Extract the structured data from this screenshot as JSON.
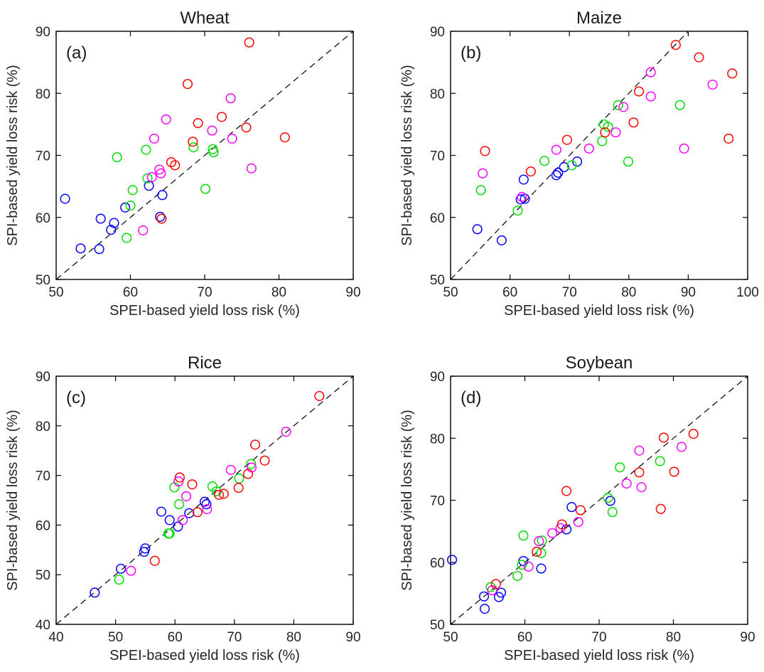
{
  "chart_data": [
    {
      "type": "scatter",
      "title": "Wheat",
      "panel_label": "(a)",
      "xlabel": "SPEI-based yield loss risk (%)",
      "ylabel": "SPI-based yield loss risk (%)",
      "xlim": [
        50,
        90
      ],
      "ylim": [
        50,
        90
      ],
      "xticks": [
        50,
        60,
        70,
        80,
        90
      ],
      "yticks": [
        50,
        60,
        70,
        80,
        90
      ],
      "reference_line": "1:1 dashed",
      "series": [
        {
          "color": "#0000ff",
          "points": [
            [
              51.2,
              63.0
            ],
            [
              53.3,
              55.0
            ],
            [
              55.8,
              54.9
            ],
            [
              56.0,
              59.8
            ],
            [
              57.4,
              58.0
            ],
            [
              57.8,
              59.1
            ],
            [
              59.3,
              61.6
            ],
            [
              62.5,
              65.1
            ],
            [
              64.0,
              60.1
            ],
            [
              64.3,
              63.6
            ]
          ]
        },
        {
          "color": "#00dd00",
          "points": [
            [
              58.2,
              69.7
            ],
            [
              59.5,
              56.7
            ],
            [
              60.0,
              61.9
            ],
            [
              60.3,
              64.4
            ],
            [
              62.1,
              70.9
            ],
            [
              62.3,
              66.3
            ],
            [
              68.5,
              71.3
            ],
            [
              70.1,
              64.6
            ],
            [
              71.1,
              71.0
            ],
            [
              71.2,
              70.5
            ]
          ]
        },
        {
          "color": "#ff00ff",
          "points": [
            [
              61.7,
              57.9
            ],
            [
              62.9,
              66.5
            ],
            [
              63.2,
              72.7
            ],
            [
              63.9,
              67.7
            ],
            [
              64.1,
              67.1
            ],
            [
              64.8,
              75.8
            ],
            [
              71.0,
              74.0
            ],
            [
              73.5,
              79.2
            ],
            [
              73.7,
              72.7
            ],
            [
              76.3,
              67.9
            ]
          ]
        },
        {
          "color": "#ff0000",
          "points": [
            [
              64.2,
              59.8
            ],
            [
              65.5,
              68.9
            ],
            [
              66.0,
              68.4
            ],
            [
              67.7,
              81.5
            ],
            [
              68.4,
              72.2
            ],
            [
              69.1,
              75.2
            ],
            [
              72.3,
              76.2
            ],
            [
              75.6,
              74.5
            ],
            [
              76.0,
              88.2
            ],
            [
              80.8,
              72.9
            ]
          ]
        }
      ]
    },
    {
      "type": "scatter",
      "title": "Maize",
      "panel_label": "(b)",
      "xlabel": "SPEI-based yield loss risk (%)",
      "ylabel": "SPI-based yield loss risk (%)",
      "xlim": [
        50,
        100
      ],
      "ylim": [
        50,
        90
      ],
      "xticks": [
        50,
        60,
        70,
        80,
        90,
        100
      ],
      "yticks": [
        50,
        60,
        70,
        80,
        90
      ],
      "reference_line": "1:1 dashed",
      "series": [
        {
          "color": "#0000ff",
          "points": [
            [
              54.5,
              58.1
            ],
            [
              58.6,
              56.3
            ],
            [
              61.8,
              62.9
            ],
            [
              62.3,
              66.1
            ],
            [
              62.5,
              63.0
            ],
            [
              67.8,
              66.8
            ],
            [
              68.1,
              67.2
            ],
            [
              69.1,
              68.1
            ],
            [
              71.3,
              69.0
            ]
          ]
        },
        {
          "color": "#00dd00",
          "points": [
            [
              55.1,
              64.4
            ],
            [
              61.3,
              61.1
            ],
            [
              65.8,
              69.1
            ],
            [
              70.4,
              68.4
            ],
            [
              75.5,
              72.3
            ],
            [
              75.8,
              75.0
            ],
            [
              76.5,
              74.6
            ],
            [
              78.2,
              78.1
            ],
            [
              79.9,
              69.0
            ],
            [
              88.6,
              78.1
            ]
          ]
        },
        {
          "color": "#ff00ff",
          "points": [
            [
              55.4,
              67.1
            ],
            [
              62.0,
              63.3
            ],
            [
              67.8,
              70.9
            ],
            [
              73.3,
              71.1
            ],
            [
              77.8,
              73.7
            ],
            [
              79.1,
              77.8
            ],
            [
              83.7,
              83.4
            ],
            [
              83.7,
              79.5
            ],
            [
              89.3,
              71.1
            ],
            [
              94.1,
              81.4
            ]
          ]
        },
        {
          "color": "#ff0000",
          "points": [
            [
              55.8,
              70.7
            ],
            [
              63.5,
              67.4
            ],
            [
              69.6,
              72.5
            ],
            [
              76.0,
              73.7
            ],
            [
              80.8,
              75.3
            ],
            [
              81.7,
              80.3
            ],
            [
              87.9,
              87.8
            ],
            [
              91.8,
              85.8
            ],
            [
              96.8,
              72.7
            ],
            [
              97.4,
              83.2
            ]
          ]
        }
      ]
    },
    {
      "type": "scatter",
      "title": "Rice",
      "panel_label": "(c)",
      "xlabel": "SPEI-based yield loss risk (%)",
      "ylabel": "SPI-based yield loss risk (%)",
      "xlim": [
        40,
        90
      ],
      "ylim": [
        40,
        90
      ],
      "xticks": [
        40,
        50,
        60,
        70,
        80,
        90
      ],
      "yticks": [
        40,
        50,
        60,
        70,
        80,
        90
      ],
      "reference_line": "1:1 dashed",
      "series": [
        {
          "color": "#0000ff",
          "points": [
            [
              46.5,
              46.4
            ],
            [
              50.9,
              51.2
            ],
            [
              54.8,
              54.6
            ],
            [
              55.0,
              55.3
            ],
            [
              57.7,
              62.7
            ],
            [
              59.1,
              61.0
            ],
            [
              60.5,
              59.7
            ],
            [
              62.4,
              62.4
            ],
            [
              65.0,
              64.7
            ],
            [
              65.3,
              64.2
            ]
          ]
        },
        {
          "color": "#00dd00",
          "points": [
            [
              50.6,
              49.0
            ],
            [
              58.9,
              58.3
            ],
            [
              59.1,
              58.3
            ],
            [
              59.9,
              67.6
            ],
            [
              60.7,
              64.2
            ],
            [
              66.3,
              67.8
            ],
            [
              67.0,
              66.8
            ],
            [
              70.8,
              69.4
            ],
            [
              72.8,
              72.3
            ]
          ]
        },
        {
          "color": "#ff00ff",
          "points": [
            [
              52.6,
              50.8
            ],
            [
              60.6,
              68.8
            ],
            [
              61.3,
              61.0
            ],
            [
              61.9,
              65.8
            ],
            [
              65.4,
              63.2
            ],
            [
              69.4,
              71.1
            ],
            [
              72.9,
              71.6
            ],
            [
              78.7,
              78.8
            ]
          ]
        },
        {
          "color": "#ff0000",
          "points": [
            [
              56.6,
              52.8
            ],
            [
              60.8,
              69.6
            ],
            [
              62.9,
              68.2
            ],
            [
              63.8,
              62.6
            ],
            [
              67.4,
              66.1
            ],
            [
              68.2,
              66.3
            ],
            [
              70.7,
              67.5
            ],
            [
              72.3,
              70.3
            ],
            [
              73.5,
              76.2
            ],
            [
              75.1,
              73.0
            ],
            [
              84.3,
              86.0
            ]
          ]
        }
      ]
    },
    {
      "type": "scatter",
      "title": "Soybean",
      "panel_label": "(d)",
      "xlabel": "SPEI-based yield loss risk (%)",
      "ylabel": "SPI-based yield loss risk (%)",
      "xlim": [
        50,
        90
      ],
      "ylim": [
        50,
        90
      ],
      "xticks": [
        50,
        60,
        70,
        80,
        90
      ],
      "yticks": [
        50,
        60,
        70,
        80,
        90
      ],
      "reference_line": "1:1 dashed",
      "series": [
        {
          "color": "#0000ff",
          "points": [
            [
              50.2,
              60.4
            ],
            [
              54.5,
              54.5
            ],
            [
              54.6,
              52.5
            ],
            [
              56.5,
              54.4
            ],
            [
              56.8,
              55.1
            ],
            [
              59.8,
              60.2
            ],
            [
              62.2,
              59.0
            ],
            [
              65.6,
              65.3
            ],
            [
              66.3,
              68.9
            ],
            [
              71.5,
              69.9
            ]
          ]
        },
        {
          "color": "#00dd00",
          "points": [
            [
              55.4,
              56.0
            ],
            [
              59.0,
              57.8
            ],
            [
              59.6,
              59.6
            ],
            [
              59.8,
              64.3
            ],
            [
              62.2,
              61.5
            ],
            [
              62.3,
              63.5
            ],
            [
              71.2,
              70.4
            ],
            [
              71.8,
              68.1
            ],
            [
              72.8,
              75.3
            ],
            [
              78.2,
              76.3
            ]
          ]
        },
        {
          "color": "#ff00ff",
          "points": [
            [
              55.6,
              55.5
            ],
            [
              60.5,
              59.3
            ],
            [
              61.9,
              63.4
            ],
            [
              63.7,
              64.7
            ],
            [
              64.8,
              65.5
            ],
            [
              67.2,
              66.5
            ],
            [
              73.7,
              72.7
            ],
            [
              75.4,
              78.0
            ],
            [
              75.7,
              72.1
            ],
            [
              81.1,
              78.6
            ]
          ]
        },
        {
          "color": "#ff0000",
          "points": [
            [
              56.1,
              56.5
            ],
            [
              61.6,
              61.7
            ],
            [
              65.0,
              66.1
            ],
            [
              65.6,
              71.5
            ],
            [
              67.5,
              68.4
            ],
            [
              75.4,
              74.5
            ],
            [
              78.3,
              68.6
            ],
            [
              78.7,
              80.1
            ],
            [
              80.1,
              74.6
            ],
            [
              82.7,
              80.7
            ]
          ]
        }
      ]
    }
  ]
}
